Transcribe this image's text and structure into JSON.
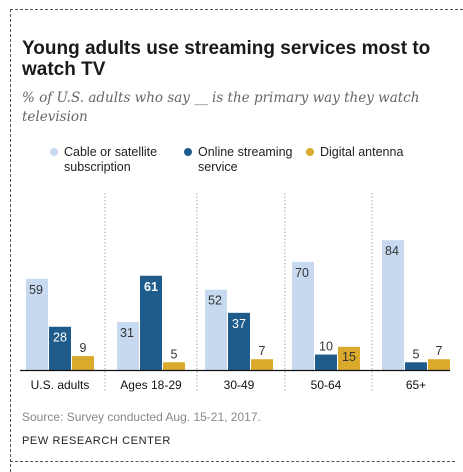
{
  "title": "Young adults use streaming services most to watch TV",
  "subtitle": "% of U.S. adults who say __ is the primary way they watch television",
  "legend": {
    "cable": "Cable or satellite subscription",
    "online": "Online streaming service",
    "antenna": "Digital antenna"
  },
  "source": "Source: Survey conducted Aug. 15-21, 2017.",
  "org": "PEW RESEARCH CENTER",
  "colors": {
    "cable": "#c6d9ef",
    "online": "#1f5c8b",
    "antenna": "#d9aa2c",
    "divider": "#aaaaaa"
  },
  "chart_data": {
    "type": "bar",
    "categories": [
      "U.S. adults",
      "Ages 18-29",
      "30-49",
      "50-64",
      "65+"
    ],
    "series": [
      {
        "name": "Cable or satellite subscription",
        "key": "cable",
        "values": [
          59,
          31,
          52,
          70,
          84
        ]
      },
      {
        "name": "Online streaming service",
        "key": "online",
        "values": [
          28,
          61,
          37,
          10,
          5
        ]
      },
      {
        "name": "Digital antenna",
        "key": "antenna",
        "values": [
          9,
          5,
          7,
          15,
          7
        ]
      }
    ],
    "ylim": [
      0,
      100
    ],
    "grid": false,
    "legend_position": "top"
  }
}
